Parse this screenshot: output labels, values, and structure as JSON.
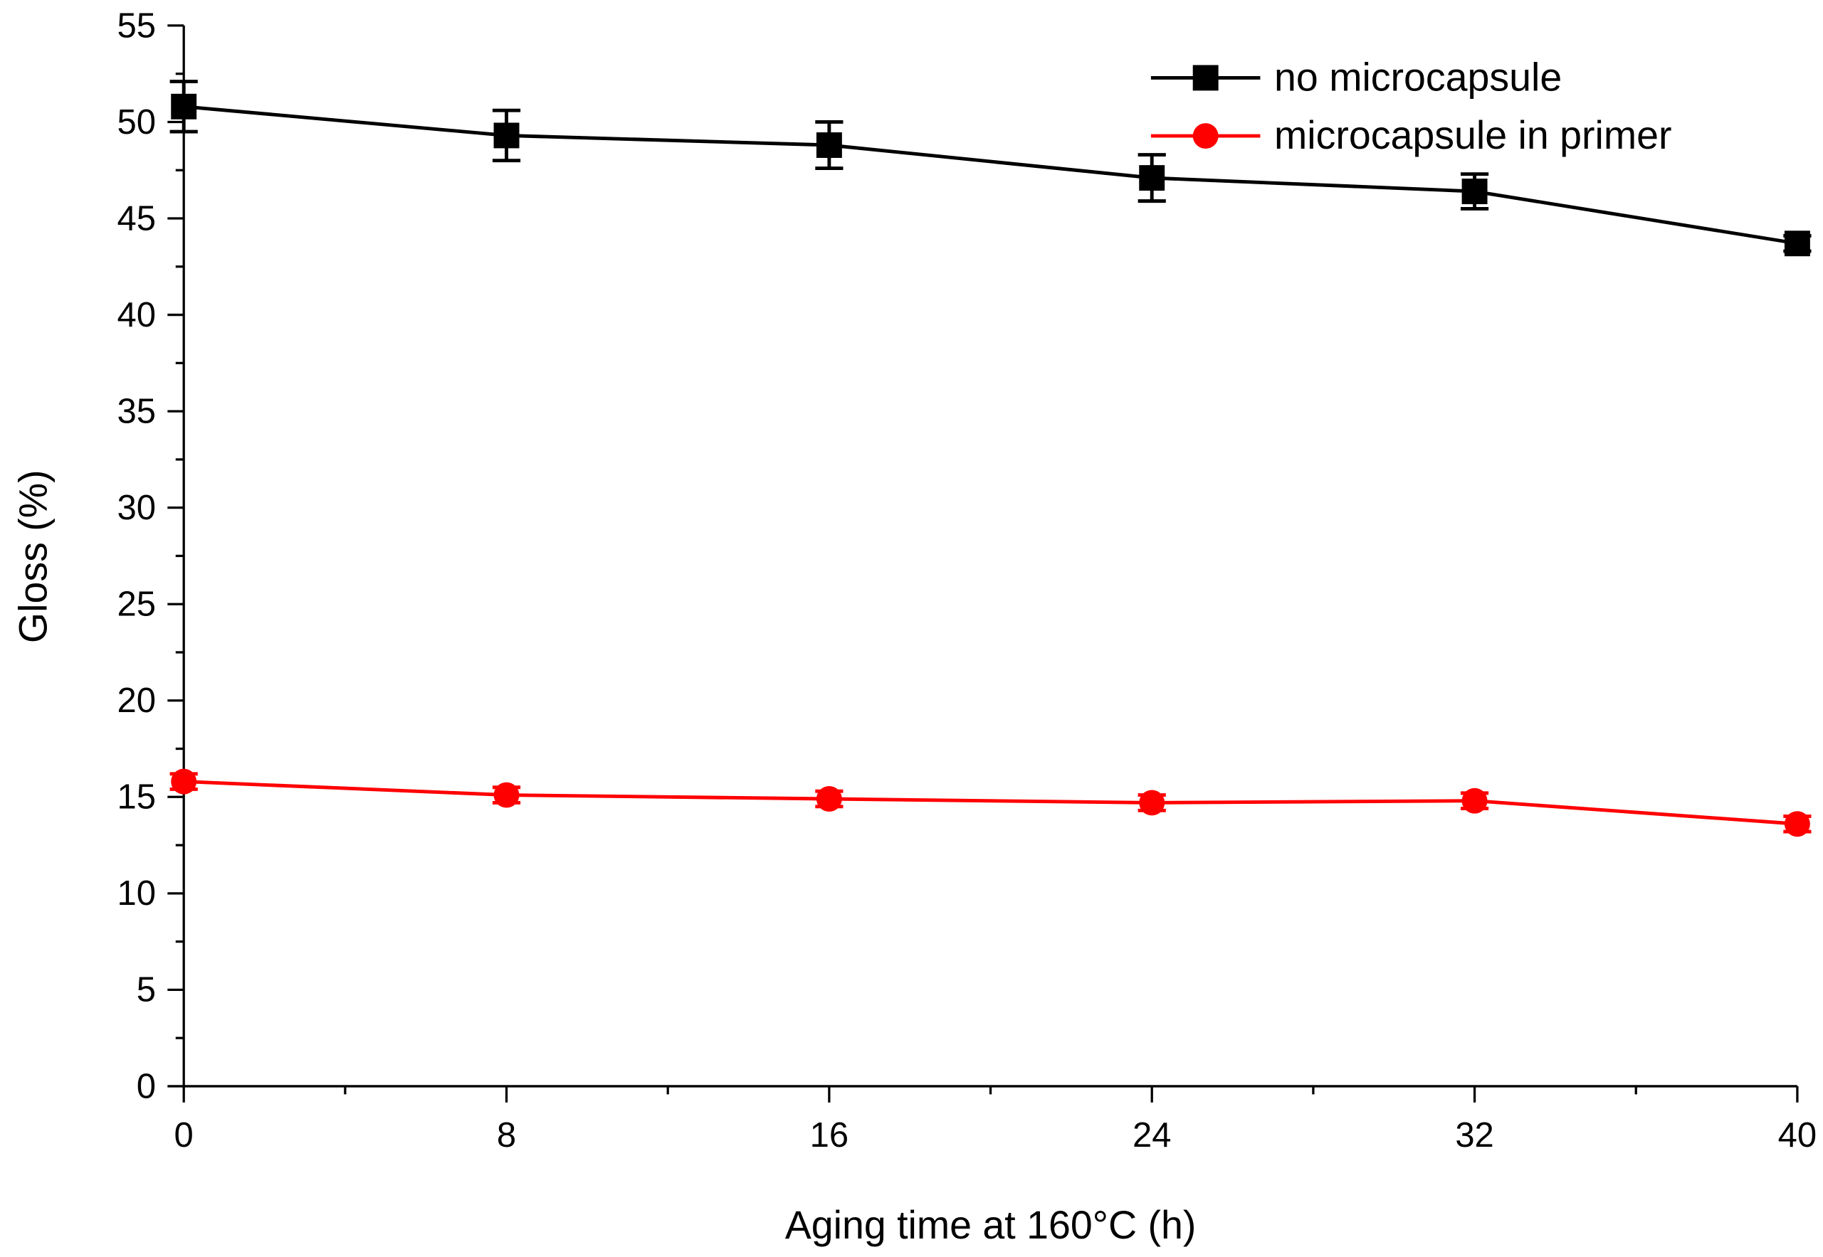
{
  "chart_data": {
    "type": "line",
    "x_label": "Aging time at 160°C (h)",
    "y_label": "Gloss (%)",
    "x": [
      0,
      8,
      16,
      24,
      32,
      40
    ],
    "series": [
      {
        "name": "no microcapsule",
        "color": "#000000",
        "marker": "square",
        "values": [
          50.8,
          49.3,
          48.8,
          47.1,
          46.4,
          43.7
        ],
        "errors": [
          1.3,
          1.3,
          1.2,
          1.2,
          0.9,
          0.4
        ]
      },
      {
        "name": "microcapsule in primer",
        "color": "#ff0000",
        "marker": "circle",
        "values": [
          15.8,
          15.1,
          14.9,
          14.7,
          14.8,
          13.6
        ],
        "errors": [
          0.4,
          0.4,
          0.4,
          0.4,
          0.4,
          0.4
        ]
      }
    ],
    "xlim": [
      0,
      40
    ],
    "xticks": [
      0,
      8,
      16,
      24,
      32,
      40
    ],
    "ylim": [
      0,
      55
    ],
    "yticks": [
      0,
      5,
      10,
      15,
      20,
      25,
      30,
      35,
      40,
      45,
      50,
      55
    ],
    "grid": false,
    "legend": "upper right"
  }
}
